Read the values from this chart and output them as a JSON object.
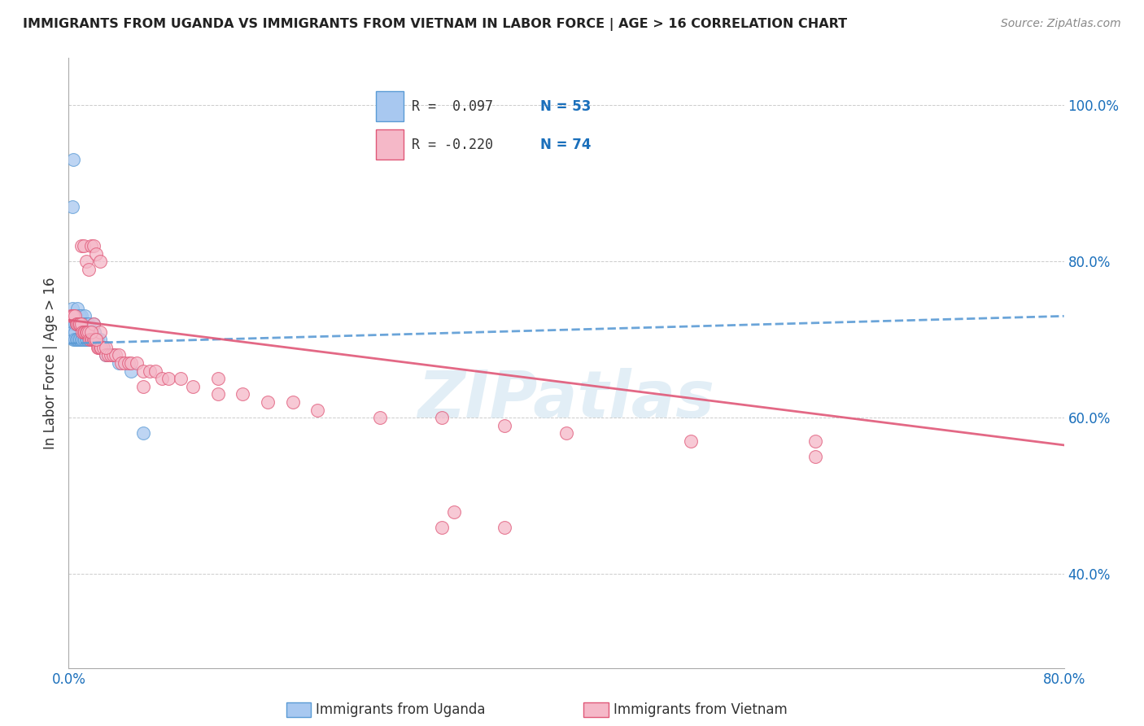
{
  "title": "IMMIGRANTS FROM UGANDA VS IMMIGRANTS FROM VIETNAM IN LABOR FORCE | AGE > 16 CORRELATION CHART",
  "source": "Source: ZipAtlas.com",
  "ylabel": "In Labor Force | Age > 16",
  "xlim": [
    0.0,
    0.8
  ],
  "ylim": [
    0.28,
    1.06
  ],
  "y_ticks_right": [
    1.0,
    0.8,
    0.6,
    0.4
  ],
  "y_tick_labels_right": [
    "100.0%",
    "80.0%",
    "60.0%",
    "40.0%"
  ],
  "color_uganda": "#a8c8f0",
  "color_vietnam": "#f5b8c8",
  "color_uganda_line": "#5b9bd5",
  "color_vietnam_line": "#e05878",
  "color_legend_r": "#1a6fbb",
  "watermark_color": "#d0e4f0",
  "uganda_x": [
    0.002,
    0.003,
    0.003,
    0.004,
    0.004,
    0.005,
    0.005,
    0.005,
    0.006,
    0.006,
    0.006,
    0.007,
    0.007,
    0.007,
    0.008,
    0.008,
    0.008,
    0.009,
    0.009,
    0.009,
    0.01,
    0.01,
    0.01,
    0.011,
    0.011,
    0.012,
    0.012,
    0.013,
    0.013,
    0.013,
    0.014,
    0.014,
    0.015,
    0.015,
    0.016,
    0.016,
    0.017,
    0.018,
    0.019,
    0.02,
    0.02,
    0.021,
    0.022,
    0.023,
    0.025,
    0.028,
    0.03,
    0.035,
    0.04,
    0.05,
    0.003,
    0.004,
    0.06
  ],
  "uganda_y": [
    0.72,
    0.74,
    0.71,
    0.73,
    0.7,
    0.72,
    0.71,
    0.7,
    0.73,
    0.72,
    0.7,
    0.74,
    0.72,
    0.7,
    0.73,
    0.72,
    0.7,
    0.73,
    0.72,
    0.7,
    0.73,
    0.72,
    0.7,
    0.72,
    0.7,
    0.72,
    0.7,
    0.73,
    0.72,
    0.7,
    0.72,
    0.7,
    0.72,
    0.7,
    0.72,
    0.7,
    0.71,
    0.71,
    0.7,
    0.72,
    0.7,
    0.71,
    0.7,
    0.7,
    0.7,
    0.69,
    0.68,
    0.68,
    0.67,
    0.66,
    0.87,
    0.93,
    0.58
  ],
  "vietnam_x": [
    0.002,
    0.003,
    0.004,
    0.005,
    0.006,
    0.007,
    0.008,
    0.009,
    0.01,
    0.011,
    0.012,
    0.013,
    0.014,
    0.015,
    0.016,
    0.017,
    0.018,
    0.019,
    0.02,
    0.021,
    0.022,
    0.023,
    0.024,
    0.025,
    0.026,
    0.028,
    0.03,
    0.032,
    0.034,
    0.036,
    0.038,
    0.04,
    0.042,
    0.045,
    0.048,
    0.05,
    0.055,
    0.06,
    0.065,
    0.07,
    0.075,
    0.08,
    0.09,
    0.1,
    0.12,
    0.14,
    0.16,
    0.18,
    0.2,
    0.25,
    0.3,
    0.35,
    0.4,
    0.5,
    0.6,
    0.01,
    0.012,
    0.014,
    0.016,
    0.018,
    0.02,
    0.022,
    0.025,
    0.31,
    0.02,
    0.025,
    0.03,
    0.018,
    0.022,
    0.06,
    0.35,
    0.6,
    0.3,
    0.12
  ],
  "vietnam_y": [
    0.73,
    0.73,
    0.73,
    0.73,
    0.72,
    0.72,
    0.72,
    0.72,
    0.72,
    0.71,
    0.71,
    0.71,
    0.71,
    0.71,
    0.71,
    0.7,
    0.7,
    0.7,
    0.7,
    0.7,
    0.7,
    0.69,
    0.69,
    0.69,
    0.69,
    0.69,
    0.68,
    0.68,
    0.68,
    0.68,
    0.68,
    0.68,
    0.67,
    0.67,
    0.67,
    0.67,
    0.67,
    0.66,
    0.66,
    0.66,
    0.65,
    0.65,
    0.65,
    0.64,
    0.63,
    0.63,
    0.62,
    0.62,
    0.61,
    0.6,
    0.6,
    0.59,
    0.58,
    0.57,
    0.55,
    0.82,
    0.82,
    0.8,
    0.79,
    0.82,
    0.82,
    0.81,
    0.8,
    0.48,
    0.72,
    0.71,
    0.69,
    0.71,
    0.7,
    0.64,
    0.46,
    0.57,
    0.46,
    0.65
  ],
  "line_ug_x0": 0.0,
  "line_ug_x1": 0.8,
  "line_ug_y0": 0.695,
  "line_ug_y1": 0.73,
  "line_vn_x0": 0.0,
  "line_vn_x1": 0.8,
  "line_vn_y0": 0.725,
  "line_vn_y1": 0.565
}
